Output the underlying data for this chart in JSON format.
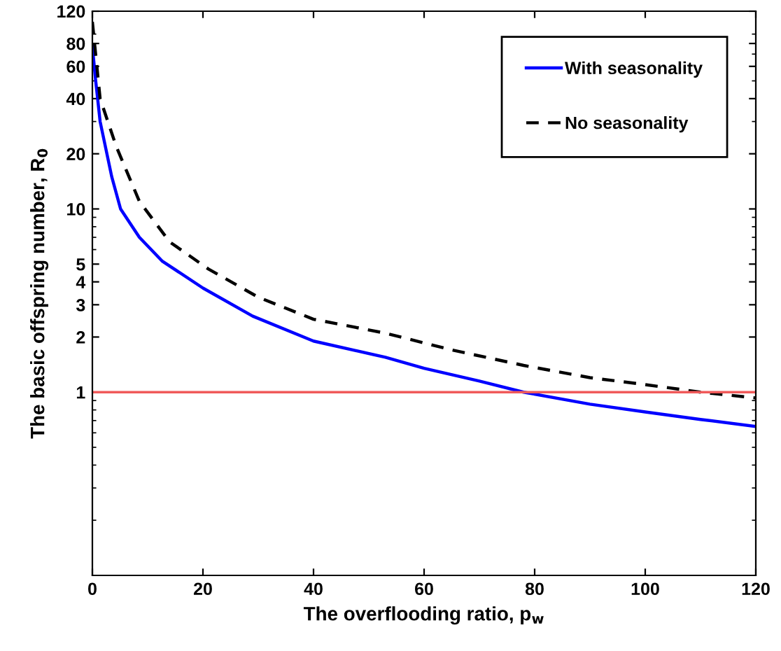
{
  "chart_data": {
    "type": "line",
    "xlabel": "The overflooding ratio, p$_{w}$",
    "ylabel": "The basic offspring number, R$_{0}$",
    "log": "y",
    "xlim": [
      0,
      120
    ],
    "xticks": [
      0,
      20,
      40,
      60,
      80,
      100,
      120
    ],
    "ylim": [
      0.1,
      120
    ],
    "yticks": [
      1,
      2,
      3,
      4,
      5,
      10,
      20,
      40,
      60,
      80,
      120
    ],
    "grid": false,
    "legend": "top right",
    "series": [
      {
        "name": "With seasonality",
        "color": "#0000ff",
        "line_style": "solid",
        "x": [
          0,
          0.6,
          1.4,
          3.5,
          5.1,
          8.5,
          12.6,
          20,
          29,
          40,
          53,
          60,
          70,
          78,
          90,
          100,
          110,
          120
        ],
        "values": [
          77,
          50,
          30,
          15,
          10,
          7,
          5.2,
          3.7,
          2.6,
          1.9,
          1.55,
          1.35,
          1.15,
          1.0,
          0.86,
          0.78,
          0.71,
          0.65
        ]
      },
      {
        "name": "No seasonality",
        "color": "#000000",
        "line_style": "dashed",
        "x": [
          0,
          1.4,
          4.3,
          8.5,
          14,
          21,
          30,
          40,
          53,
          65,
          78,
          90,
          100,
          110,
          120
        ],
        "values": [
          105,
          40,
          22,
          11,
          6.6,
          4.7,
          3.3,
          2.5,
          2.1,
          1.7,
          1.4,
          1.2,
          1.1,
          1.0,
          0.93
        ]
      }
    ],
    "ref_lines": [
      {
        "axis": "y",
        "value": 1,
        "color": "#f05a5a",
        "line_style": "solid"
      }
    ]
  }
}
